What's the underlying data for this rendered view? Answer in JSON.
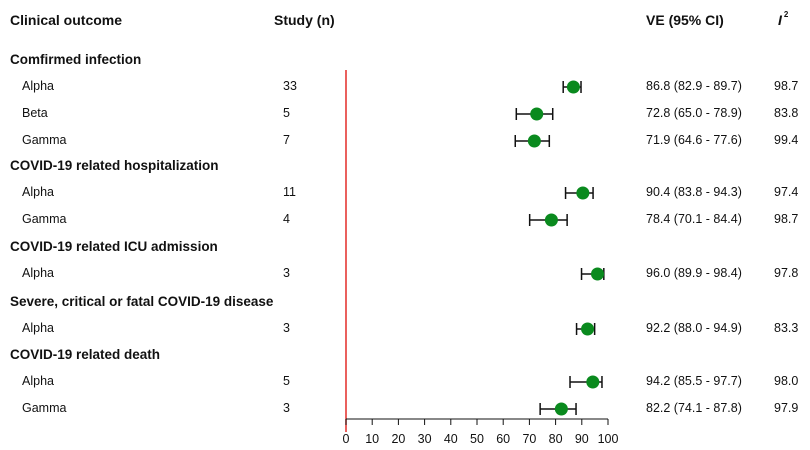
{
  "headers": {
    "outcome": "Clinical outcome",
    "study": "Study (n)",
    "ve": "VE (95% CI)",
    "i2_base": "I",
    "i2_sup": "2"
  },
  "chart_data": {
    "type": "forest",
    "xlim": [
      0,
      100
    ],
    "xticks": [
      0,
      10,
      20,
      30,
      40,
      50,
      60,
      70,
      80,
      90,
      100
    ],
    "reference_line": 0,
    "colors": {
      "point": "#0a8a1e",
      "reference": "#e53935",
      "bar": "#111111"
    },
    "groups": [
      {
        "name": "Comfirmed infection",
        "rows": [
          {
            "variant": "Alpha",
            "n": "33",
            "ve": 86.8,
            "lo": 82.9,
            "hi": 89.7,
            "ci_text": "86.8 (82.9 - 89.7)",
            "i2": "98.7"
          },
          {
            "variant": "Beta",
            "n": "5",
            "ve": 72.8,
            "lo": 65.0,
            "hi": 78.9,
            "ci_text": "72.8 (65.0 - 78.9)",
            "i2": "83.8"
          },
          {
            "variant": "Gamma",
            "n": "7",
            "ve": 71.9,
            "lo": 64.6,
            "hi": 77.6,
            "ci_text": "71.9 (64.6 - 77.6)",
            "i2": "99.4"
          }
        ]
      },
      {
        "name": "COVID-19 related hospitalization",
        "rows": [
          {
            "variant": "Alpha",
            "n": "11",
            "ve": 90.4,
            "lo": 83.8,
            "hi": 94.3,
            "ci_text": "90.4 (83.8 - 94.3)",
            "i2": "97.4"
          },
          {
            "variant": "Gamma",
            "n": "4",
            "ve": 78.4,
            "lo": 70.1,
            "hi": 84.4,
            "ci_text": "78.4 (70.1 - 84.4)",
            "i2": "98.7"
          }
        ]
      },
      {
        "name": "COVID-19 related ICU admission",
        "rows": [
          {
            "variant": "Alpha",
            "n": "3",
            "ve": 96.0,
            "lo": 89.9,
            "hi": 98.4,
            "ci_text": "96.0 (89.9 - 98.4)",
            "i2": "97.8"
          }
        ]
      },
      {
        "name": "Severe, critical or fatal COVID-19 disease",
        "rows": [
          {
            "variant": "Alpha",
            "n": "3",
            "ve": 92.2,
            "lo": 88.0,
            "hi": 94.9,
            "ci_text": "92.2 (88.0 - 94.9)",
            "i2": "83.3"
          }
        ]
      },
      {
        "name": "COVID-19 related death",
        "rows": [
          {
            "variant": "Alpha",
            "n": "5",
            "ve": 94.2,
            "lo": 85.5,
            "hi": 97.7,
            "ci_text": "94.2 (85.5 - 97.7)",
            "i2": "98.0"
          },
          {
            "variant": "Gamma",
            "n": "3",
            "ve": 82.2,
            "lo": 74.1,
            "hi": 87.8,
            "ci_text": "82.2 (74.1 - 87.8)",
            "i2": "97.9"
          }
        ]
      }
    ]
  }
}
